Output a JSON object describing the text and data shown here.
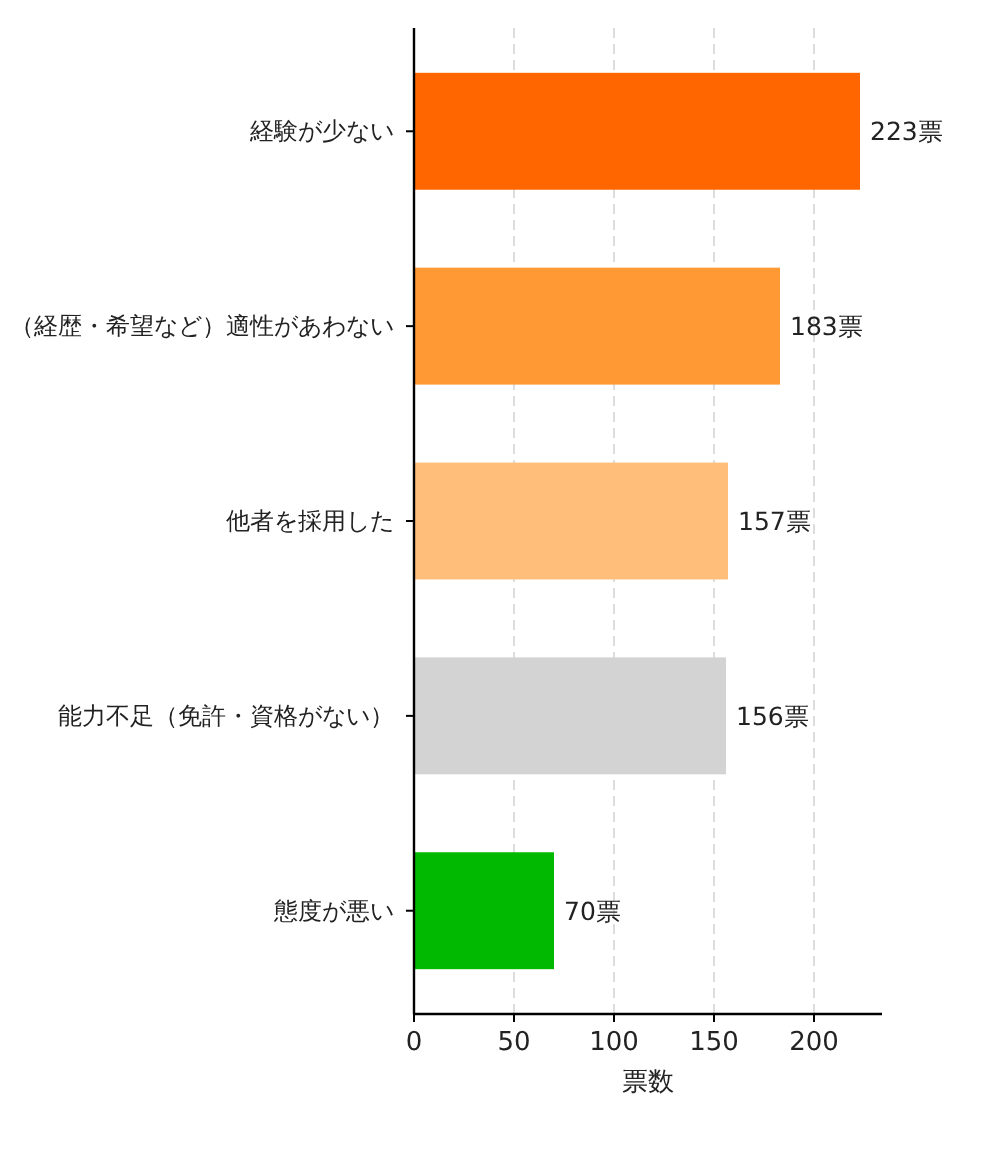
{
  "chart_data": {
    "type": "bar",
    "orientation": "horizontal",
    "xlabel": "票数",
    "categories": [
      "経験が少ない",
      "（経歴・希望など）適性があわない",
      "他者を採用した",
      "能力不足（免許・資格がない）",
      "態度が悪い"
    ],
    "values": [
      223,
      183,
      157,
      156,
      70
    ],
    "colors": [
      "#ff6600",
      "#ff9933",
      "#ffbf7a",
      "#d3d3d3",
      "#00b900"
    ],
    "value_labels": [
      "223票",
      "183票",
      "157票",
      "156票",
      "70票"
    ],
    "xlim": [
      0,
      234
    ],
    "xticks": [
      0,
      50,
      100,
      150,
      200
    ],
    "grid": "x"
  }
}
